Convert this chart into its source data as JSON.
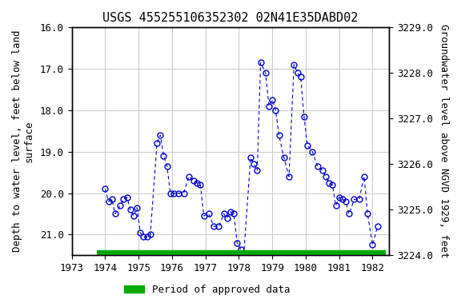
{
  "title": "USGS 455255106352302 02N41E35DABD02",
  "xlabel_bottom": "Period of approved data",
  "ylabel_left": "Depth to water level, feet below land\nsurface",
  "ylabel_right": "Groundwater level above NGVD 1929, feet",
  "xlim": [
    1973.0,
    1982.5
  ],
  "ylim_left": [
    16.0,
    21.5
  ],
  "ylim_right": [
    3229.0,
    3224.0
  ],
  "yticks_left": [
    16.0,
    17.0,
    18.0,
    19.0,
    20.0,
    21.0
  ],
  "yticks_right": [
    3229.0,
    3228.0,
    3227.0,
    3226.0,
    3225.0,
    3224.0
  ],
  "xticks": [
    1973,
    1974,
    1975,
    1976,
    1977,
    1978,
    1979,
    1980,
    1981,
    1982
  ],
  "background_color": "#ffffff",
  "plot_bg_color": "#ffffff",
  "grid_color": "#cccccc",
  "line_color": "#0000cc",
  "marker_color": "#0000cc",
  "title_fontsize": 11,
  "label_fontsize": 9,
  "tick_fontsize": 9,
  "data_x": [
    1974.0,
    1974.1,
    1974.2,
    1974.3,
    1974.45,
    1974.55,
    1974.65,
    1974.75,
    1974.85,
    1974.95,
    1975.05,
    1975.15,
    1975.25,
    1975.35,
    1975.55,
    1975.65,
    1975.75,
    1975.85,
    1975.95,
    1976.05,
    1976.2,
    1976.35,
    1976.5,
    1976.65,
    1976.75,
    1976.85,
    1976.95,
    1977.1,
    1977.25,
    1977.4,
    1977.55,
    1977.65,
    1977.75,
    1977.85,
    1977.95,
    1978.05,
    1978.15,
    1978.35,
    1978.45,
    1978.55,
    1978.65,
    1978.8,
    1978.9,
    1979.0,
    1979.1,
    1979.2,
    1979.35,
    1979.5,
    1979.65,
    1979.75,
    1979.85,
    1979.95,
    1980.05,
    1980.2,
    1980.35,
    1980.5,
    1980.6,
    1980.7,
    1980.8,
    1980.9,
    1981.0,
    1981.1,
    1981.2,
    1981.3,
    1981.45,
    1981.6,
    1981.75,
    1981.85,
    1982.0,
    1982.15
  ],
  "data_y": [
    19.9,
    20.2,
    20.15,
    20.5,
    20.3,
    20.15,
    20.1,
    20.4,
    20.55,
    20.35,
    20.95,
    21.05,
    21.05,
    21.0,
    18.8,
    18.6,
    19.1,
    19.35,
    20.0,
    20.0,
    20.0,
    20.0,
    19.6,
    19.7,
    19.75,
    19.8,
    20.55,
    20.5,
    20.8,
    20.8,
    20.5,
    20.6,
    20.45,
    20.5,
    21.2,
    21.35,
    21.45,
    19.15,
    19.3,
    19.45,
    16.85,
    17.1,
    17.9,
    17.75,
    18.0,
    18.6,
    19.15,
    19.6,
    16.9,
    17.1,
    17.2,
    18.15,
    18.85,
    19.0,
    19.35,
    19.45,
    19.6,
    19.75,
    19.8,
    20.3,
    20.1,
    20.15,
    20.2,
    20.5,
    20.15,
    20.15,
    19.6,
    20.5,
    21.25,
    20.8
  ],
  "approved_bar_color": "#00aa00",
  "approved_bar_xstart": 1973.75,
  "approved_bar_xend": 1982.4,
  "approved_bar_y": 21.45
}
